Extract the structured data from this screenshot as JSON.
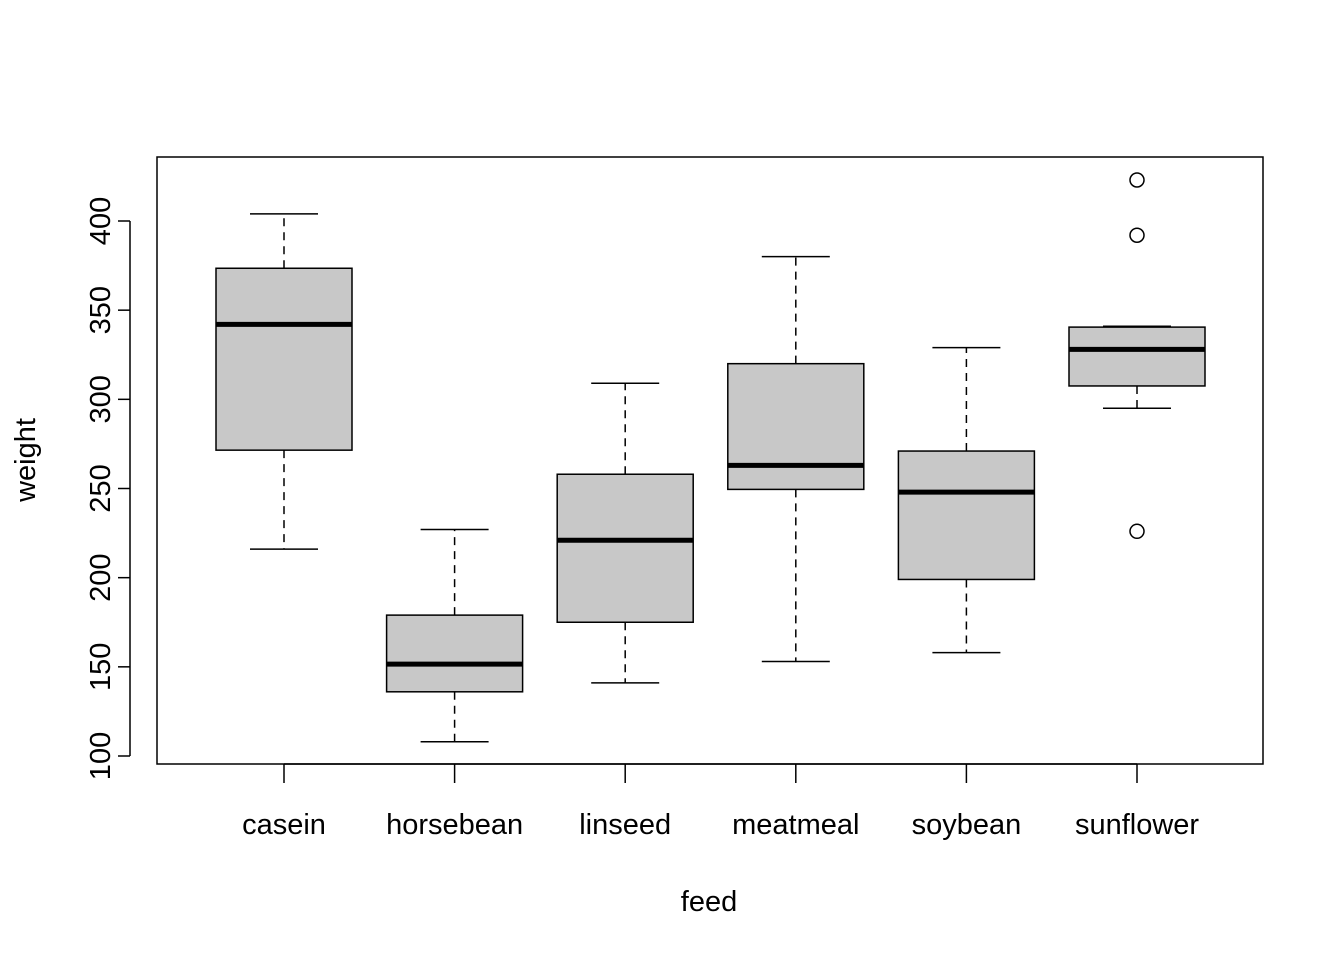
{
  "chart_data": {
    "type": "boxplot",
    "title": "",
    "xlabel": "feed",
    "ylabel": "weight",
    "ylim": [
      95.5,
      436
    ],
    "yticks": [
      100,
      150,
      200,
      250,
      300,
      350,
      400
    ],
    "categories": [
      "casein",
      "horsebean",
      "linseed",
      "meatmeal",
      "soybean",
      "sunflower"
    ],
    "boxes": [
      {
        "min": 216,
        "q1": 271.5,
        "median": 342,
        "q3": 373.5,
        "max": 404,
        "outliers": []
      },
      {
        "min": 108,
        "q1": 136,
        "median": 151.5,
        "q3": 179,
        "max": 227,
        "outliers": []
      },
      {
        "min": 141,
        "q1": 175,
        "median": 221,
        "q3": 258,
        "max": 309,
        "outliers": []
      },
      {
        "min": 153,
        "q1": 249.5,
        "median": 263,
        "q3": 320,
        "max": 380,
        "outliers": []
      },
      {
        "min": 158,
        "q1": 199,
        "median": 248,
        "q3": 271,
        "max": 329,
        "outliers": []
      },
      {
        "min": 295,
        "q1": 307.5,
        "median": 328,
        "q3": 340.5,
        "max": 341,
        "outliers": [
          226,
          392,
          423
        ]
      }
    ],
    "box_fill": "#c8c8c8",
    "grid": false,
    "legend": "none"
  }
}
